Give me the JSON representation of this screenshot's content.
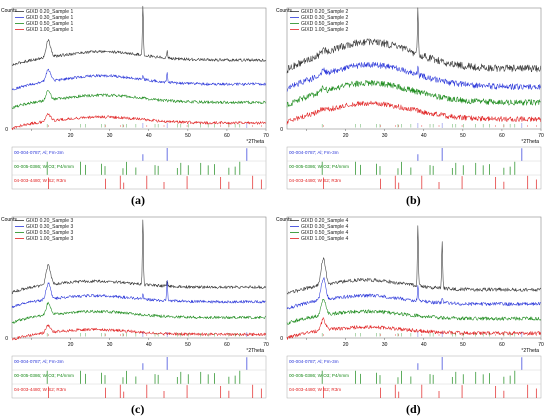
{
  "chart_data": [
    {
      "type": "line",
      "label": "(a)",
      "ylabel": "Counts",
      "xlabel": "°2Theta",
      "xlim": [
        5,
        70
      ],
      "ylim": [
        0,
        1
      ],
      "xticks": [
        "10",
        "20",
        "30",
        "40",
        "50",
        "60",
        "70"
      ],
      "yticks": [
        "0"
      ],
      "legend_position": "top-left",
      "series": [
        {
          "name": "GIXD 0.20_Sample 1",
          "color": "#333333",
          "offset": 0.57,
          "noise": 0.012,
          "hump_h": 0.07,
          "hump_c": 28,
          "hump_w": 14,
          "low_peak": 0.14,
          "peaks": [
            [
              38.5,
              0.42
            ],
            [
              44.7,
              0.06
            ]
          ]
        },
        {
          "name": "GIXD 0.30_Sample 1",
          "color": "#2a36d9",
          "offset": 0.37,
          "noise": 0.012,
          "hump_h": 0.07,
          "hump_c": 28,
          "hump_w": 14,
          "low_peak": 0.1,
          "peaks": [
            [
              38.5,
              0.04
            ],
            [
              44.7,
              0.08
            ]
          ]
        },
        {
          "name": "GIXD 0.50_Sample 1",
          "color": "#1a8a1a",
          "offset": 0.22,
          "noise": 0.012,
          "hump_h": 0.06,
          "hump_c": 28,
          "hump_w": 14,
          "low_peak": 0.08,
          "peaks": []
        },
        {
          "name": "GIXD 1.00_Sample 1",
          "color": "#e02020",
          "offset": 0.05,
          "noise": 0.012,
          "hump_h": 0.05,
          "hump_c": 28,
          "hump_w": 14,
          "low_peak": 0.06,
          "peaks": []
        }
      ],
      "reference_patterns": [
        {
          "label": "00-004-0787; Al; Fm-3m",
          "color": "#2a36d9",
          "positions": [
            38.5,
            44.7,
            65.1
          ]
        },
        {
          "label": "00-005-0386; W O3; P4/nmm",
          "color": "#1a8a1a",
          "positions": [
            14,
            22.5,
            23.8,
            27.9,
            28.8,
            33.4,
            34.3,
            36.7,
            41.6,
            42.4,
            47.3,
            48.2,
            50.1,
            53.3,
            55.2,
            56.8,
            60.5,
            62.1,
            63.3
          ]
        },
        {
          "label": "04-003-4480; W S2; R3m",
          "color": "#e02020",
          "positions": [
            14.3,
            28.9,
            32.7,
            33.6,
            39.5,
            43.9,
            49.8,
            58.4,
            60.5,
            66.6,
            68.8
          ]
        }
      ]
    },
    {
      "type": "line",
      "label": "(b)",
      "ylabel": "Counts",
      "xlabel": "°2Theta",
      "xlim": [
        5,
        70
      ],
      "ylim": [
        0,
        1
      ],
      "xticks": [
        "10",
        "20",
        "30",
        "40",
        "50",
        "60",
        "70"
      ],
      "yticks": [
        "0"
      ],
      "legend_position": "top-left",
      "series": [
        {
          "name": "GIXD 0.20_Sample 2",
          "color": "#333333",
          "offset": 0.5,
          "noise": 0.03,
          "hump_h": 0.22,
          "hump_c": 26,
          "hump_w": 16,
          "low_peak": 0.03,
          "peaks": [
            [
              38.5,
              0.38
            ]
          ]
        },
        {
          "name": "GIXD 0.30_Sample 2",
          "color": "#2a36d9",
          "offset": 0.35,
          "noise": 0.025,
          "hump_h": 0.18,
          "hump_c": 26,
          "hump_w": 16,
          "low_peak": 0.03,
          "peaks": [
            [
              38.5,
              0.06
            ]
          ]
        },
        {
          "name": "GIXD 0.50_Sample 2",
          "color": "#1a8a1a",
          "offset": 0.22,
          "noise": 0.025,
          "hump_h": 0.16,
          "hump_c": 26,
          "hump_w": 16,
          "low_peak": 0.03,
          "peaks": []
        },
        {
          "name": "GIXD 1.00_Sample 2",
          "color": "#e02020",
          "offset": 0.08,
          "noise": 0.022,
          "hump_h": 0.13,
          "hump_c": 26,
          "hump_w": 16,
          "low_peak": 0.02,
          "peaks": []
        }
      ],
      "reference_patterns": [
        {
          "label": "00-004-0787; Al; Fm-3m",
          "color": "#2a36d9",
          "positions": [
            38.5,
            44.7,
            65.1
          ]
        },
        {
          "label": "00-005-0386; W O3; P4/nmm",
          "color": "#1a8a1a",
          "positions": [
            14,
            22.5,
            23.8,
            27.9,
            28.8,
            33.4,
            34.3,
            36.7,
            41.6,
            42.4,
            47.3,
            48.2,
            50.1,
            53.3,
            55.2,
            56.8,
            60.5,
            62.1,
            63.3
          ]
        },
        {
          "label": "04-003-4480; W S2; R3m",
          "color": "#e02020",
          "positions": [
            14.3,
            28.9,
            32.7,
            33.6,
            39.5,
            43.9,
            49.8,
            58.4,
            60.5,
            66.6,
            68.8
          ]
        }
      ]
    },
    {
      "type": "line",
      "label": "(c)",
      "ylabel": "Counts",
      "xlabel": "°2Theta",
      "xlim": [
        5,
        70
      ],
      "ylim": [
        0,
        1
      ],
      "xticks": [
        "10",
        "20",
        "30",
        "40",
        "50",
        "60",
        "70"
      ],
      "yticks": [
        "0"
      ],
      "legend_position": "top-left",
      "series": [
        {
          "name": "GIXD 0.20_Sample 3",
          "color": "#333333",
          "offset": 0.42,
          "noise": 0.012,
          "hump_h": 0.05,
          "hump_c": 26,
          "hump_w": 14,
          "low_peak": 0.16,
          "peaks": [
            [
              38.5,
              0.55
            ],
            [
              44.7,
              0.05
            ]
          ]
        },
        {
          "name": "GIXD 0.30_Sample 3",
          "color": "#2a36d9",
          "offset": 0.3,
          "noise": 0.012,
          "hump_h": 0.05,
          "hump_c": 26,
          "hump_w": 14,
          "low_peak": 0.13,
          "peaks": [
            [
              38.5,
              0.05
            ],
            [
              44.7,
              0.16
            ]
          ]
        },
        {
          "name": "GIXD 0.50_Sample 3",
          "color": "#1a8a1a",
          "offset": 0.17,
          "noise": 0.012,
          "hump_h": 0.05,
          "hump_c": 26,
          "hump_w": 14,
          "low_peak": 0.1,
          "peaks": []
        },
        {
          "name": "GIXD 1.00_Sample 3",
          "color": "#e02020",
          "offset": 0.03,
          "noise": 0.012,
          "hump_h": 0.04,
          "hump_c": 26,
          "hump_w": 14,
          "low_peak": 0.06,
          "peaks": []
        }
      ],
      "reference_patterns": [
        {
          "label": "00-004-0787; Al; Fm-3m",
          "color": "#2a36d9",
          "positions": [
            38.5,
            44.7,
            65.1
          ]
        },
        {
          "label": "00-005-0386; W O3; P4/nmm",
          "color": "#1a8a1a",
          "positions": [
            14,
            22.5,
            23.8,
            27.9,
            28.8,
            33.4,
            34.3,
            36.7,
            41.6,
            42.4,
            47.3,
            48.2,
            50.1,
            53.3,
            55.2,
            56.8,
            60.5,
            62.1,
            63.3
          ]
        },
        {
          "label": "04-003-4480; W S2; R3m",
          "color": "#e02020",
          "positions": [
            14.3,
            28.9,
            32.7,
            33.6,
            39.5,
            43.9,
            49.8,
            58.4,
            60.5,
            66.6,
            68.8
          ]
        }
      ]
    },
    {
      "type": "line",
      "label": "(d)",
      "ylabel": "Counts",
      "xlabel": "°2Theta",
      "xlim": [
        5,
        70
      ],
      "ylim": [
        0,
        1
      ],
      "xticks": [
        "10",
        "20",
        "30",
        "40",
        "50",
        "60",
        "70"
      ],
      "yticks": [
        "0"
      ],
      "legend_position": "top-left",
      "series": [
        {
          "name": "GIXD 0.20_Sample 4",
          "color": "#333333",
          "offset": 0.4,
          "noise": 0.015,
          "hump_h": 0.08,
          "hump_c": 25,
          "hump_w": 14,
          "low_peak": 0.22,
          "peaks": [
            [
              38.5,
              0.5
            ],
            [
              44.7,
              0.4
            ]
          ]
        },
        {
          "name": "GIXD 0.30_Sample 4",
          "color": "#2a36d9",
          "offset": 0.28,
          "noise": 0.015,
          "hump_h": 0.07,
          "hump_c": 25,
          "hump_w": 14,
          "low_peak": 0.18,
          "peaks": [
            [
              38.5,
              0.12
            ],
            [
              44.7,
              0.05
            ]
          ]
        },
        {
          "name": "GIXD 0.50_Sample 4",
          "color": "#1a8a1a",
          "offset": 0.16,
          "noise": 0.015,
          "hump_h": 0.06,
          "hump_c": 25,
          "hump_w": 14,
          "low_peak": 0.14,
          "peaks": []
        },
        {
          "name": "GIXD 1.00_Sample 4",
          "color": "#e02020",
          "offset": 0.04,
          "noise": 0.015,
          "hump_h": 0.05,
          "hump_c": 25,
          "hump_w": 14,
          "low_peak": 0.09,
          "peaks": []
        }
      ],
      "reference_patterns": [
        {
          "label": "00-004-0787; Al; Fm-3m",
          "color": "#2a36d9",
          "positions": [
            38.5,
            44.7,
            65.1
          ]
        },
        {
          "label": "00-005-0386; W O3; P4/nmm",
          "color": "#1a8a1a",
          "positions": [
            14,
            22.5,
            23.8,
            27.9,
            28.8,
            33.4,
            34.3,
            36.7,
            41.6,
            42.4,
            47.3,
            48.2,
            50.1,
            53.3,
            55.2,
            56.8,
            60.5,
            62.1,
            63.3
          ]
        },
        {
          "label": "04-003-4480; W S2; R3m",
          "color": "#e02020",
          "positions": [
            14.3,
            28.9,
            32.7,
            33.6,
            39.5,
            43.9,
            49.8,
            58.4,
            60.5,
            66.6,
            68.8
          ]
        }
      ]
    }
  ]
}
